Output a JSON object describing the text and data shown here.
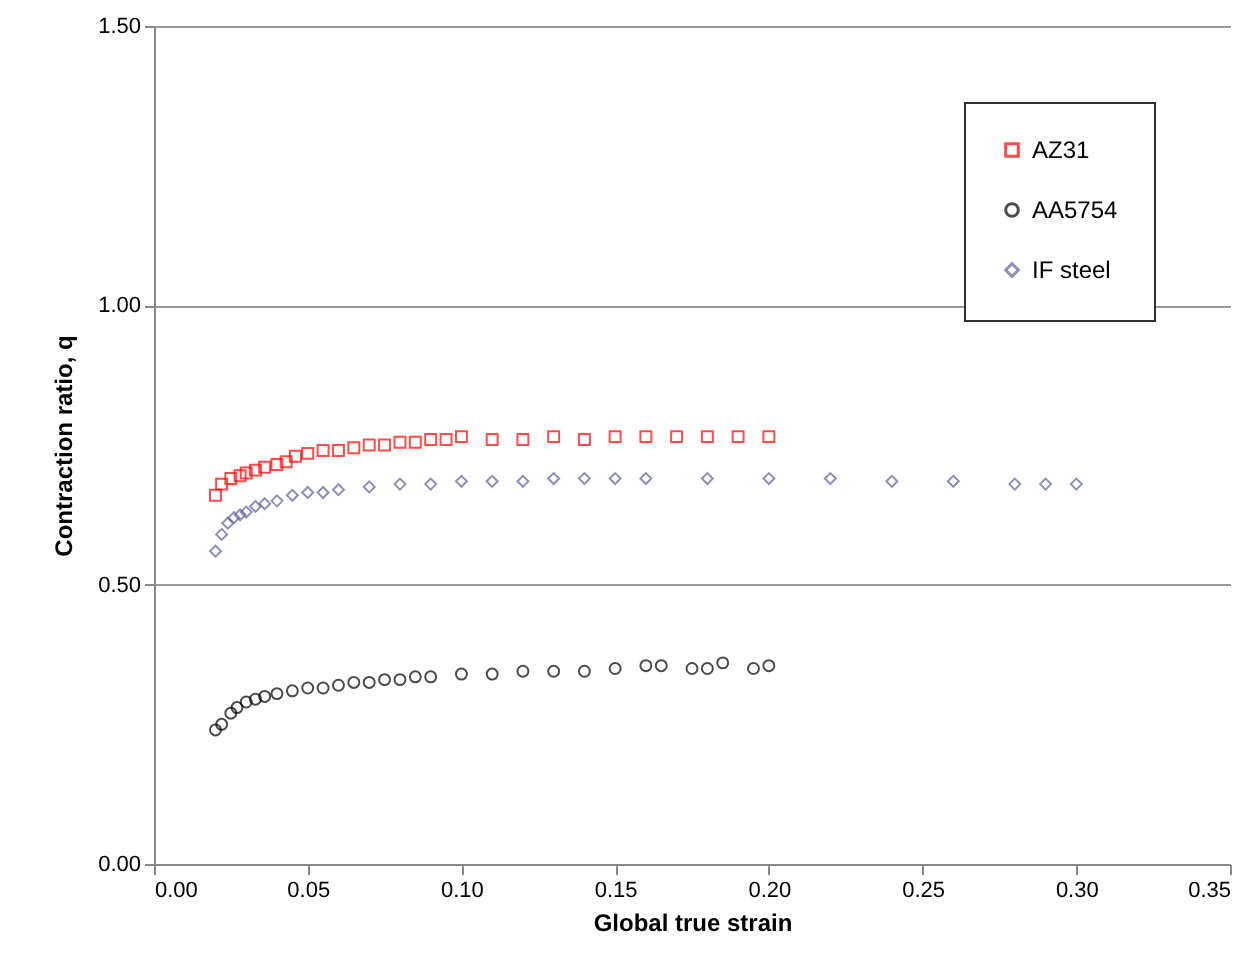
{
  "chart_data": {
    "type": "scatter",
    "xlabel": "Global true strain",
    "ylabel": "Contraction ratio, q",
    "xlim": [
      0,
      0.35
    ],
    "ylim": [
      0,
      1.5
    ],
    "xticks": [
      {
        "value": 0,
        "label": "0.00"
      },
      {
        "value": 0.05,
        "label": "0.05"
      },
      {
        "value": 0.1,
        "label": "0.10"
      },
      {
        "value": 0.15,
        "label": "0.15"
      },
      {
        "value": 0.2,
        "label": "0.20"
      },
      {
        "value": 0.25,
        "label": "0.25"
      },
      {
        "value": 0.3,
        "label": "0.30"
      },
      {
        "value": 0.35,
        "label": "0.35"
      }
    ],
    "yticks": [
      {
        "value": 0,
        "label": "0.00"
      },
      {
        "value": 0.5,
        "label": "0.50"
      },
      {
        "value": 1,
        "label": "1.00"
      },
      {
        "value": 1.5,
        "label": "1.50"
      }
    ],
    "grid": "y",
    "legend": "top right",
    "series": [
      {
        "name": "AZ31",
        "color": "#ff0000",
        "marker": "square",
        "x": [
          0.02,
          0.022,
          0.025,
          0.028,
          0.03,
          0.033,
          0.036,
          0.04,
          0.043,
          0.046,
          0.05,
          0.055,
          0.06,
          0.065,
          0.07,
          0.075,
          0.08,
          0.085,
          0.09,
          0.095,
          0.1,
          0.11,
          0.12,
          0.13,
          0.14,
          0.15,
          0.16,
          0.17,
          0.18,
          0.19,
          0.2
        ],
        "values": [
          0.66,
          0.68,
          0.69,
          0.695,
          0.7,
          0.705,
          0.71,
          0.715,
          0.72,
          0.73,
          0.735,
          0.74,
          0.74,
          0.745,
          0.75,
          0.75,
          0.755,
          0.755,
          0.76,
          0.76,
          0.765,
          0.76,
          0.76,
          0.765,
          0.76,
          0.765,
          0.765,
          0.765,
          0.765,
          0.765,
          0.765
        ]
      },
      {
        "name": "AA5754",
        "color": "#000000",
        "marker": "circle",
        "x": [
          0.02,
          0.022,
          0.025,
          0.027,
          0.03,
          0.033,
          0.036,
          0.04,
          0.045,
          0.05,
          0.055,
          0.06,
          0.065,
          0.07,
          0.075,
          0.08,
          0.085,
          0.09,
          0.1,
          0.11,
          0.12,
          0.13,
          0.14,
          0.15,
          0.16,
          0.165,
          0.175,
          0.18,
          0.185,
          0.195,
          0.2
        ],
        "values": [
          0.24,
          0.25,
          0.27,
          0.28,
          0.29,
          0.295,
          0.3,
          0.305,
          0.31,
          0.315,
          0.315,
          0.32,
          0.325,
          0.325,
          0.33,
          0.33,
          0.335,
          0.335,
          0.34,
          0.34,
          0.345,
          0.345,
          0.345,
          0.35,
          0.355,
          0.355,
          0.35,
          0.35,
          0.36,
          0.35,
          0.355
        ]
      },
      {
        "name": "IF steel",
        "color": "#5f5f9f",
        "marker": "diamond",
        "x": [
          0.02,
          0.022,
          0.024,
          0.026,
          0.028,
          0.03,
          0.033,
          0.036,
          0.04,
          0.045,
          0.05,
          0.055,
          0.06,
          0.07,
          0.08,
          0.09,
          0.1,
          0.11,
          0.12,
          0.13,
          0.14,
          0.15,
          0.16,
          0.18,
          0.2,
          0.22,
          0.24,
          0.26,
          0.28,
          0.29,
          0.3
        ],
        "values": [
          0.56,
          0.59,
          0.61,
          0.62,
          0.625,
          0.63,
          0.64,
          0.645,
          0.65,
          0.66,
          0.665,
          0.665,
          0.67,
          0.675,
          0.68,
          0.68,
          0.685,
          0.685,
          0.685,
          0.69,
          0.69,
          0.69,
          0.69,
          0.69,
          0.69,
          0.69,
          0.685,
          0.685,
          0.68,
          0.68,
          0.68
        ]
      }
    ]
  }
}
